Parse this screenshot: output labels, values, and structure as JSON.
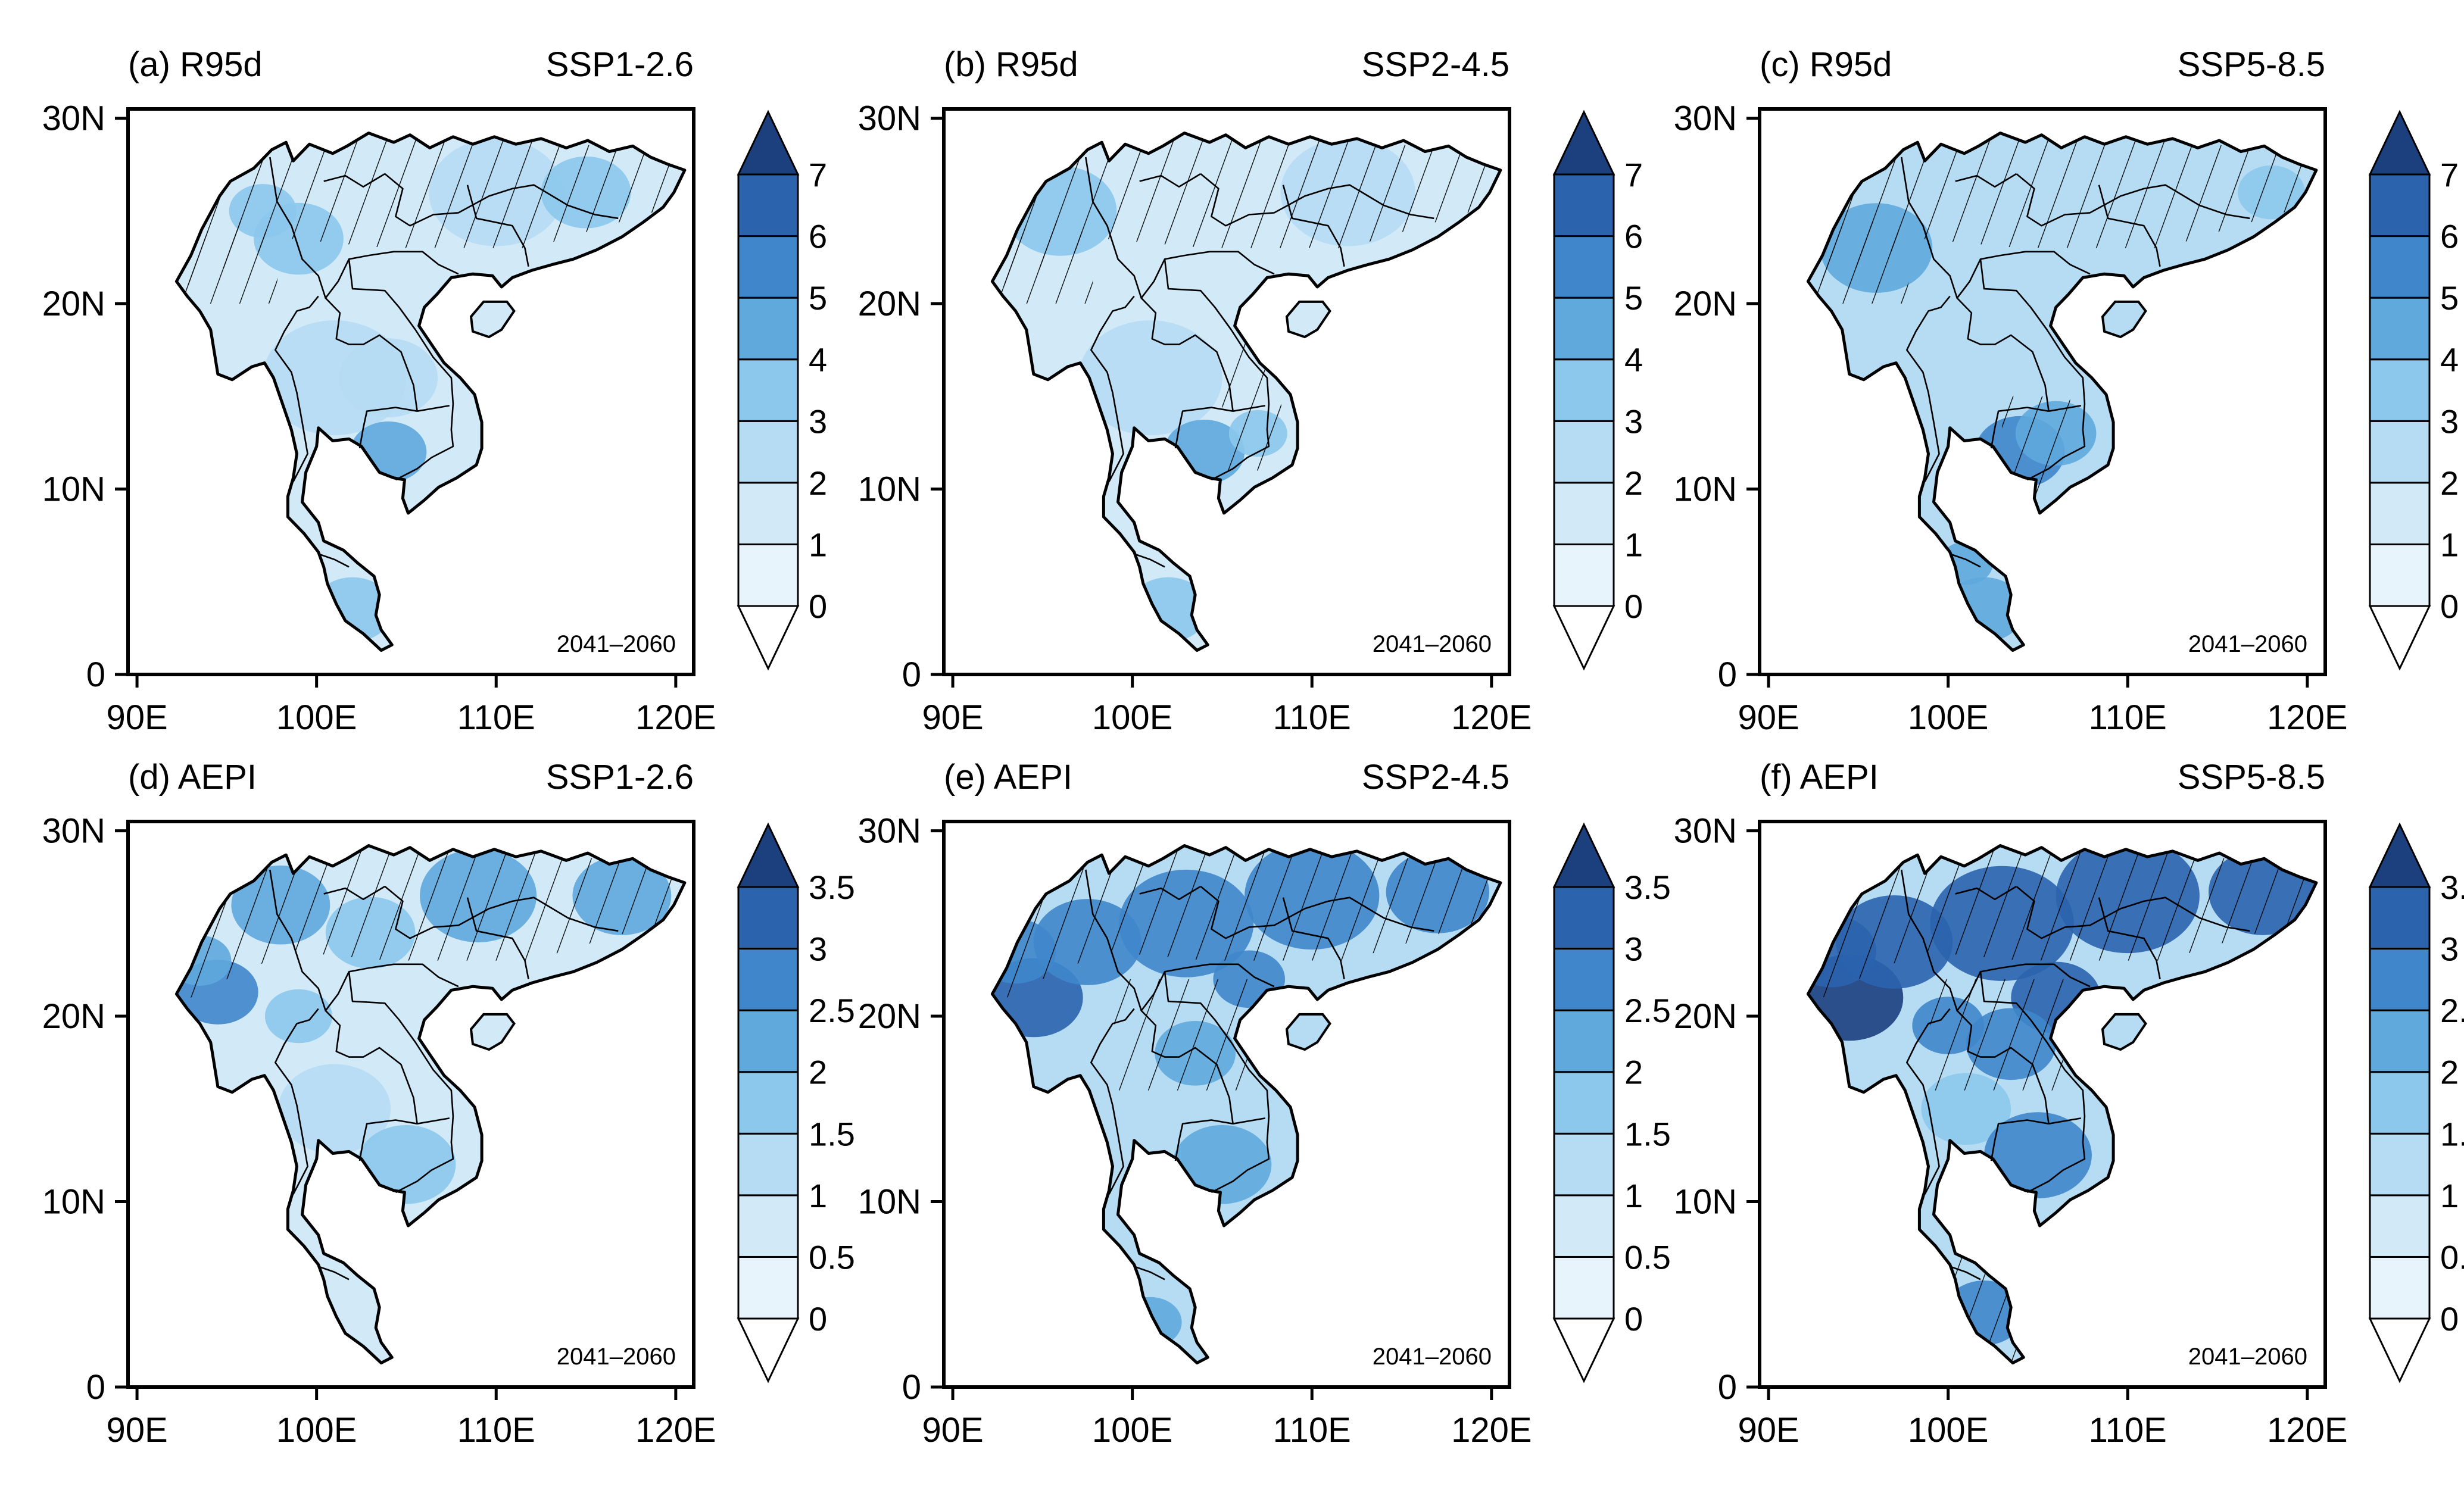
{
  "figure": {
    "panels": [
      {
        "id": "a",
        "label": "(a) R95d",
        "scenario": "SSP1-2.6",
        "period": "2041–2060",
        "colorbar": "r95d",
        "hatch_pattern": "north+west",
        "intensity": 1
      },
      {
        "id": "b",
        "label": "(b) R95d",
        "scenario": "SSP2-4.5",
        "period": "2041–2060",
        "colorbar": "r95d",
        "hatch_pattern": "north+west+east",
        "intensity": 1
      },
      {
        "id": "c",
        "label": "(c) R95d",
        "scenario": "SSP5-8.5",
        "period": "2041–2060",
        "colorbar": "r95d",
        "hatch_pattern": "north+west+mekong",
        "intensity": 2
      },
      {
        "id": "d",
        "label": "(d) AEPI",
        "scenario": "SSP1-2.6",
        "period": "2041–2060",
        "colorbar": "aepi",
        "hatch_pattern": "north",
        "intensity": 1
      },
      {
        "id": "e",
        "label": "(e) AEPI",
        "scenario": "SSP2-4.5",
        "period": "2041–2060",
        "colorbar": "aepi",
        "hatch_pattern": "north+center",
        "intensity": 2
      },
      {
        "id": "f",
        "label": "(f) AEPI",
        "scenario": "SSP5-8.5",
        "period": "2041–2060",
        "colorbar": "aepi",
        "hatch_pattern": "north+center+south",
        "intensity": 3
      }
    ],
    "axes": {
      "lon_ticks": [
        "90E",
        "100E",
        "110E",
        "120E"
      ],
      "lon_values": [
        90,
        100,
        110,
        120
      ],
      "lat_ticks": [
        "0",
        "10N",
        "20N",
        "30N"
      ],
      "lat_values": [
        0,
        10,
        20,
        30
      ],
      "lon_range": [
        89.5,
        121
      ],
      "lat_range": [
        0,
        30.5
      ]
    },
    "colorbars": {
      "r95d": {
        "levels": [
          "0",
          "1",
          "2",
          "3",
          "4",
          "5",
          "6",
          "7"
        ]
      },
      "aepi": {
        "levels": [
          "0",
          "0.5",
          "1",
          "1.5",
          "2",
          "2.5",
          "3",
          "3.5"
        ]
      }
    },
    "colors": {
      "under": "#ffffff",
      "bins": [
        "#e8f4fc",
        "#d2eaf8",
        "#b6dcf3",
        "#8cc8ec",
        "#5fa9dd",
        "#3f86cb",
        "#2b63ad",
        "#1c3f7e"
      ],
      "over": "#1c3f7e",
      "border": "#000000",
      "hatch": "#000000"
    }
  }
}
